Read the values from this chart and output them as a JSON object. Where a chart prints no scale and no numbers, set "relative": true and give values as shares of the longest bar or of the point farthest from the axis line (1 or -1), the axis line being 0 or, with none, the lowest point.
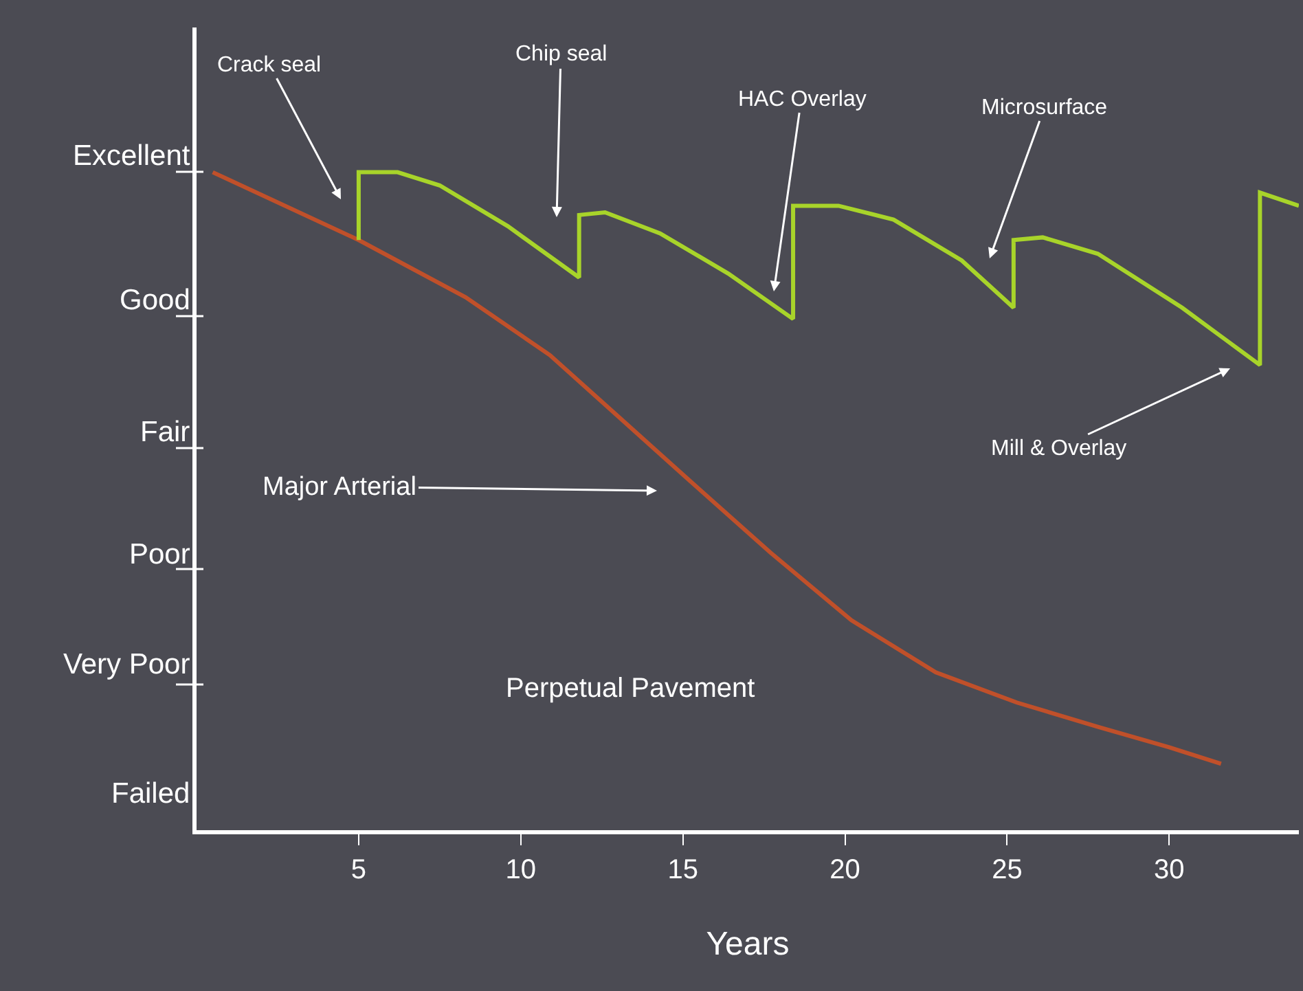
{
  "chart_data": {
    "type": "line",
    "xlabel": "Years",
    "relative": true,
    "xlim": [
      0,
      34
    ],
    "xticks": [
      5,
      10,
      15,
      20,
      25,
      30
    ],
    "grid": false,
    "marker": "none",
    "line_style": "solid",
    "series": [
      {
        "color": "#c0502a",
        "x": [
          0.5,
          5.0,
          8.3,
          10.9,
          13.0,
          15.1,
          17.7,
          20.2,
          22.8,
          25.3,
          27.8,
          30.0,
          31.6
        ],
        "values": [
          1.0,
          0.897,
          0.81,
          0.722,
          0.629,
          0.536,
          0.422,
          0.319,
          0.24,
          0.194,
          0.157,
          0.126,
          0.101
        ]
      },
      {
        "color": "#a8d42a",
        "x": [
          5.0,
          5.0,
          6.2,
          7.5,
          9.6,
          11.8,
          11.8,
          12.6,
          14.3,
          16.4,
          18.4,
          18.4,
          19.8,
          21.5,
          23.6,
          25.2,
          25.2,
          26.1,
          27.8,
          30.4,
          32.8,
          32.8,
          34.0
        ],
        "values": [
          0.897,
          1.0,
          1.0,
          0.98,
          0.918,
          0.84,
          0.935,
          0.939,
          0.907,
          0.846,
          0.777,
          0.949,
          0.949,
          0.928,
          0.866,
          0.794,
          0.897,
          0.901,
          0.876,
          0.794,
          0.707,
          0.969,
          0.949
        ]
      }
    ],
    "annotations": [
      "Crack seal",
      "Chip seal",
      "HAC Overlay",
      "Microsurface",
      "Mill & Overlay",
      "Major Arterial",
      "Perpetual Pavement",
      "Excellent",
      "Good",
      "Fair",
      "Poor",
      "Very Poor",
      "Failed"
    ]
  }
}
